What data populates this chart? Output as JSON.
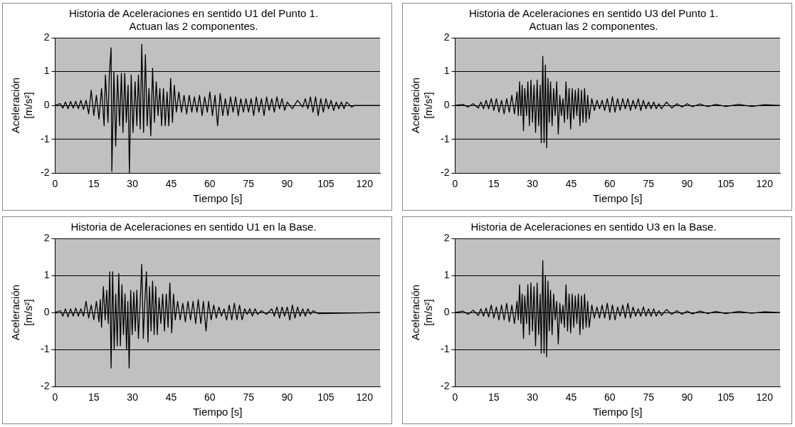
{
  "chart_data": [
    {
      "type": "line",
      "title": "Historia de Aceleraciones en sentido U1 del Punto 1. Actuan las 2 componentes.",
      "xlabel": "Tiempo [s]",
      "ylabel": "Aceleración [m/s²]",
      "xlim": [
        0,
        126
      ],
      "xticks": [
        0,
        15,
        30,
        45,
        60,
        75,
        90,
        105,
        120
      ],
      "ylim": [
        -2,
        2
      ],
      "yticks": [
        -2,
        -1,
        0,
        1,
        2
      ],
      "grid": "y",
      "marker": "none",
      "line_style": "solid",
      "color": "#000000",
      "x": [
        0,
        2,
        3,
        4,
        5,
        6,
        7,
        8,
        9,
        10,
        11,
        12,
        13,
        14,
        15,
        16,
        17,
        18,
        19,
        19.5,
        20.5,
        21,
        21.7,
        22,
        22.8,
        23.5,
        24.2,
        25,
        25.7,
        26.3,
        27,
        27.6,
        28.3,
        28.8,
        29.5,
        30.2,
        31,
        31.7,
        32.3,
        33,
        33.6,
        34.3,
        35,
        35.7,
        36.4,
        37.1,
        37.8,
        38.5,
        39.2,
        39.9,
        40.6,
        41.3,
        42,
        42.7,
        43.4,
        44.1,
        44.8,
        45.5,
        46.2,
        47,
        48,
        49,
        50,
        51,
        52,
        53,
        54,
        55,
        56,
        57,
        58,
        59,
        60,
        61,
        62,
        63,
        64,
        65,
        66,
        67,
        68,
        69,
        70,
        71,
        72,
        73,
        74,
        75,
        76,
        77,
        78,
        79,
        80,
        81,
        82,
        83,
        84,
        85,
        86,
        87,
        88,
        89,
        90,
        92,
        94,
        96,
        97,
        98,
        99,
        100,
        101,
        102,
        103,
        104,
        105,
        106,
        107,
        108,
        109,
        110,
        111,
        112,
        113,
        115,
        116,
        126
      ],
      "values": [
        0,
        0.05,
        -0.08,
        0.1,
        -0.1,
        0.12,
        -0.08,
        0.12,
        -0.1,
        0.15,
        -0.12,
        0.15,
        -0.25,
        0.45,
        -0.3,
        0.3,
        -0.4,
        0.5,
        -0.6,
        0.9,
        -0.5,
        0.9,
        1.7,
        -1.95,
        1.0,
        -1.2,
        0.9,
        -0.6,
        0.95,
        -0.8,
        0.95,
        -0.5,
        0.6,
        -2.0,
        0.9,
        -0.8,
        0.7,
        -0.6,
        0.9,
        -0.7,
        1.8,
        -0.8,
        1.5,
        -0.6,
        0.5,
        -0.9,
        1.1,
        -0.5,
        0.7,
        -0.3,
        0.5,
        -0.6,
        0.5,
        -0.6,
        0.4,
        -0.6,
        0.8,
        -0.5,
        0.6,
        -0.2,
        0.4,
        -0.2,
        0.3,
        -0.25,
        0.3,
        -0.2,
        0.25,
        -0.2,
        0.3,
        -0.3,
        0.25,
        -0.2,
        0.4,
        -0.3,
        0.3,
        -0.6,
        0.35,
        -0.3,
        0.2,
        -0.3,
        0.25,
        -0.2,
        0.25,
        -0.3,
        0.2,
        -0.2,
        0.2,
        -0.2,
        0.2,
        -0.3,
        0.25,
        -0.2,
        0.2,
        -0.3,
        0.25,
        -0.15,
        0.2,
        -0.2,
        0.25,
        -0.1,
        0.2,
        -0.15,
        0.1,
        -0.1,
        0.15,
        -0.05,
        0.2,
        -0.1,
        0.25,
        -0.2,
        0.25,
        -0.3,
        0.2,
        -0.2,
        0.2,
        -0.1,
        0.15,
        -0.15,
        0.1,
        -0.1,
        0.1,
        -0.1,
        0.1,
        -0.05,
        0,
        0
      ]
    },
    {
      "type": "line",
      "title": "Historia de Aceleraciones en sentido U3 del Punto 1. Actuan las 2 componentes.",
      "xlabel": "Tiempo [s]",
      "ylabel": "Aceleración [m/s²]",
      "xlim": [
        0,
        126
      ],
      "xticks": [
        0,
        15,
        30,
        45,
        60,
        75,
        90,
        105,
        120
      ],
      "ylim": [
        -2,
        2
      ],
      "yticks": [
        -2,
        -1,
        0,
        1,
        2
      ],
      "grid": "y",
      "marker": "none",
      "line_style": "solid",
      "color": "#000000",
      "x": [
        0,
        3,
        5,
        7,
        9,
        10,
        11,
        12,
        13,
        14,
        15,
        16,
        17,
        18,
        19,
        20,
        21,
        22,
        23,
        24,
        24.5,
        25,
        25.5,
        26,
        26.5,
        27,
        27.7,
        28.2,
        28.8,
        29.4,
        30,
        30.6,
        31.2,
        31.8,
        32.4,
        33,
        33.4,
        34,
        34.5,
        35,
        35.5,
        36,
        36.5,
        37,
        37.6,
        38.2,
        38.8,
        39.4,
        40,
        40.6,
        41.2,
        41.8,
        42.4,
        43,
        43.6,
        44.2,
        44.8,
        45.4,
        46,
        46.6,
        47.2,
        47.8,
        48.4,
        49,
        49.6,
        50.2,
        50.8,
        51.4,
        52,
        53,
        54,
        55,
        56,
        57,
        58,
        59,
        60,
        61,
        62,
        63,
        64,
        65,
        66,
        67,
        68,
        69,
        70,
        71,
        72,
        73,
        74,
        75,
        76,
        77,
        78,
        79,
        80,
        82,
        84,
        86,
        88,
        90,
        92,
        95,
        98,
        101,
        105,
        110,
        115,
        120,
        126
      ],
      "values": [
        0,
        0.03,
        -0.05,
        0.05,
        -0.08,
        0.1,
        -0.1,
        0.15,
        -0.1,
        0.2,
        -0.15,
        0.2,
        -0.2,
        0.15,
        -0.25,
        0.2,
        -0.2,
        0.3,
        -0.25,
        0.4,
        -0.3,
        0.7,
        -0.3,
        0.6,
        -0.75,
        0.5,
        -0.3,
        0.7,
        -0.6,
        0.75,
        -0.5,
        0.6,
        -0.8,
        0.75,
        -0.6,
        0.6,
        -1.1,
        1.45,
        -1.1,
        1.2,
        -1.25,
        0.8,
        -0.5,
        0.7,
        -0.6,
        0.5,
        -0.3,
        0.7,
        -0.85,
        0.3,
        -0.3,
        0.2,
        -0.5,
        0.7,
        -0.4,
        0.5,
        -0.7,
        0.5,
        -0.4,
        0.45,
        -0.3,
        0.5,
        -0.6,
        0.45,
        -0.5,
        0.5,
        -0.5,
        0.3,
        -0.4,
        0.2,
        -0.15,
        0.15,
        -0.1,
        0.15,
        -0.15,
        0.2,
        -0.2,
        0.25,
        -0.2,
        0.2,
        -0.15,
        0.2,
        -0.1,
        0.2,
        -0.15,
        0.15,
        -0.1,
        0.2,
        -0.15,
        0.15,
        -0.1,
        0.1,
        -0.1,
        0.1,
        -0.1,
        0.05,
        -0.1,
        0.1,
        -0.08,
        0.05,
        -0.05,
        0.05,
        -0.04,
        0.04,
        -0.04,
        0.03,
        -0.03,
        0.03,
        -0.03,
        0.02,
        0
      ]
    },
    {
      "type": "line",
      "title": "Historia de Aceleraciones en sentido U1 en la Base.",
      "xlabel": "Tiempo [s]",
      "ylabel": "Aceleración [m/s²]",
      "xlim": [
        0,
        126
      ],
      "xticks": [
        0,
        15,
        30,
        45,
        60,
        75,
        90,
        105,
        120
      ],
      "ylim": [
        -2,
        2
      ],
      "yticks": [
        -2,
        -1,
        0,
        1,
        2
      ],
      "grid": "y",
      "marker": "none",
      "line_style": "solid",
      "color": "#000000",
      "x": [
        0,
        2,
        3,
        4,
        5,
        6,
        7,
        8,
        9,
        10,
        11,
        12,
        13,
        14,
        15,
        16,
        17,
        17.5,
        18,
        18.7,
        19.4,
        20,
        20.6,
        21.2,
        21.7,
        22.3,
        22.9,
        23.5,
        24.1,
        24.7,
        25.3,
        25.9,
        26.5,
        27.1,
        27.7,
        28.2,
        28.7,
        29.3,
        29.9,
        30.5,
        31.1,
        31.7,
        32.3,
        33,
        33.6,
        34.2,
        34.8,
        35.4,
        36,
        36.6,
        37.2,
        37.8,
        38.4,
        39,
        39.6,
        40.3,
        41,
        41.7,
        42.4,
        43.1,
        43.8,
        44.5,
        45.2,
        45.9,
        46.6,
        47.5,
        48.5,
        49.5,
        50.5,
        51.5,
        52.5,
        53.5,
        54.5,
        55.5,
        56.5,
        57.5,
        58.5,
        59.5,
        60.5,
        61.5,
        62.5,
        63.5,
        64.5,
        65.5,
        66.5,
        67.5,
        68.5,
        69.5,
        70.5,
        71.5,
        72.5,
        73.5,
        74.5,
        75.5,
        76.5,
        77.5,
        78.5,
        80,
        82,
        84,
        85,
        86,
        87,
        88,
        89,
        90,
        91,
        92,
        93,
        94,
        95,
        96,
        97,
        98,
        99,
        100,
        102,
        126
      ],
      "values": [
        0,
        0.05,
        -0.1,
        0.1,
        -0.12,
        0.1,
        -0.1,
        0.12,
        -0.1,
        0.1,
        -0.1,
        0.3,
        -0.15,
        0.2,
        -0.2,
        0.3,
        -0.25,
        0.35,
        -0.4,
        0.7,
        -0.2,
        0.6,
        -0.3,
        1.1,
        -1.5,
        1.1,
        -1.0,
        0.5,
        -0.9,
        1.05,
        -0.9,
        0.75,
        -0.6,
        0.5,
        -1.0,
        0.3,
        -1.5,
        0.6,
        -0.6,
        0.55,
        -0.5,
        0.6,
        -0.7,
        0.3,
        1.3,
        -0.7,
        0.3,
        1.1,
        -0.8,
        0.7,
        -0.5,
        0.85,
        -0.6,
        0.7,
        -0.6,
        0.4,
        -0.3,
        0.5,
        -0.5,
        0.5,
        -0.4,
        0.8,
        -0.55,
        0.5,
        -0.2,
        0.3,
        -0.2,
        0.25,
        -0.25,
        0.3,
        -0.2,
        0.3,
        -0.3,
        0.35,
        -0.3,
        0.3,
        -0.5,
        0.3,
        -0.2,
        0.2,
        -0.15,
        0.15,
        -0.1,
        0.1,
        -0.2,
        0.2,
        -0.2,
        0.25,
        -0.2,
        0.2,
        -0.2,
        0.1,
        -0.05,
        0.1,
        -0.1,
        0.1,
        -0.05,
        0.05,
        -0.05,
        0.1,
        -0.1,
        0.15,
        -0.15,
        0.15,
        -0.1,
        0.15,
        -0.2,
        0.2,
        -0.15,
        0.15,
        -0.1,
        0.1,
        -0.1,
        0.1,
        -0.05,
        0.05,
        -0.03,
        0
      ]
    },
    {
      "type": "line",
      "title": "Historia de Aceleraciones en sentido U3 en la Base.",
      "xlabel": "Tiempo [s]",
      "ylabel": "Aceleración [m/s²]",
      "xlim": [
        0,
        126
      ],
      "xticks": [
        0,
        15,
        30,
        45,
        60,
        75,
        90,
        105,
        120
      ],
      "ylim": [
        -2,
        2
      ],
      "yticks": [
        -2,
        -1,
        0,
        1,
        2
      ],
      "grid": "y",
      "marker": "none",
      "line_style": "solid",
      "color": "#000000",
      "x": [
        0,
        3,
        5,
        7,
        9,
        10,
        11,
        12,
        13,
        14,
        15,
        16,
        17,
        18,
        19,
        20,
        21,
        22,
        23,
        24,
        24.5,
        25,
        25.5,
        26,
        26.5,
        27,
        27.7,
        28.2,
        28.8,
        29.4,
        30,
        30.6,
        31.2,
        31.8,
        32.4,
        33,
        33.4,
        34,
        34.5,
        35,
        35.5,
        36,
        36.5,
        37,
        37.6,
        38.2,
        38.8,
        39.4,
        40,
        40.6,
        41.2,
        41.8,
        42.4,
        43,
        43.6,
        44.2,
        44.8,
        45.4,
        46,
        46.6,
        47.2,
        47.8,
        48.4,
        49,
        49.6,
        50.2,
        50.8,
        51.4,
        52,
        53,
        54,
        55,
        56,
        57,
        58,
        59,
        60,
        61,
        62,
        63,
        64,
        65,
        66,
        67,
        68,
        69,
        70,
        71,
        72,
        73,
        74,
        75,
        76,
        77,
        78,
        79,
        80,
        82,
        84,
        86,
        88,
        90,
        92,
        95,
        98,
        101,
        105,
        110,
        115,
        120,
        126
      ],
      "values": [
        0,
        0.04,
        -0.05,
        0.06,
        -0.08,
        0.1,
        -0.1,
        0.12,
        -0.12,
        0.2,
        -0.15,
        0.15,
        -0.2,
        0.2,
        -0.2,
        0.25,
        -0.25,
        0.2,
        -0.3,
        0.3,
        -0.2,
        0.75,
        -0.3,
        0.5,
        -0.7,
        0.45,
        -0.3,
        0.75,
        -0.6,
        0.8,
        -0.5,
        0.7,
        -0.9,
        0.8,
        -0.6,
        0.5,
        -1.1,
        1.4,
        -1.1,
        1.0,
        -1.2,
        0.85,
        -0.5,
        0.6,
        -0.6,
        0.5,
        -0.2,
        0.3,
        -0.85,
        0.25,
        -0.3,
        0.2,
        -0.4,
        0.75,
        -0.5,
        0.5,
        -0.55,
        0.5,
        -0.4,
        0.45,
        -0.3,
        0.5,
        -0.6,
        0.45,
        -0.45,
        0.5,
        -0.4,
        0.3,
        -0.4,
        0.2,
        -0.15,
        0.15,
        -0.15,
        0.2,
        -0.15,
        0.25,
        -0.2,
        0.2,
        -0.2,
        0.15,
        -0.1,
        0.2,
        -0.15,
        0.25,
        -0.15,
        0.15,
        -0.1,
        0.1,
        -0.1,
        0.15,
        -0.1,
        0.1,
        -0.1,
        0.1,
        -0.1,
        0.05,
        -0.08,
        0.08,
        -0.05,
        0.05,
        -0.05,
        0.04,
        -0.04,
        0.04,
        -0.03,
        0.03,
        -0.03,
        0.03,
        -0.02,
        0.02,
        0
      ]
    }
  ]
}
